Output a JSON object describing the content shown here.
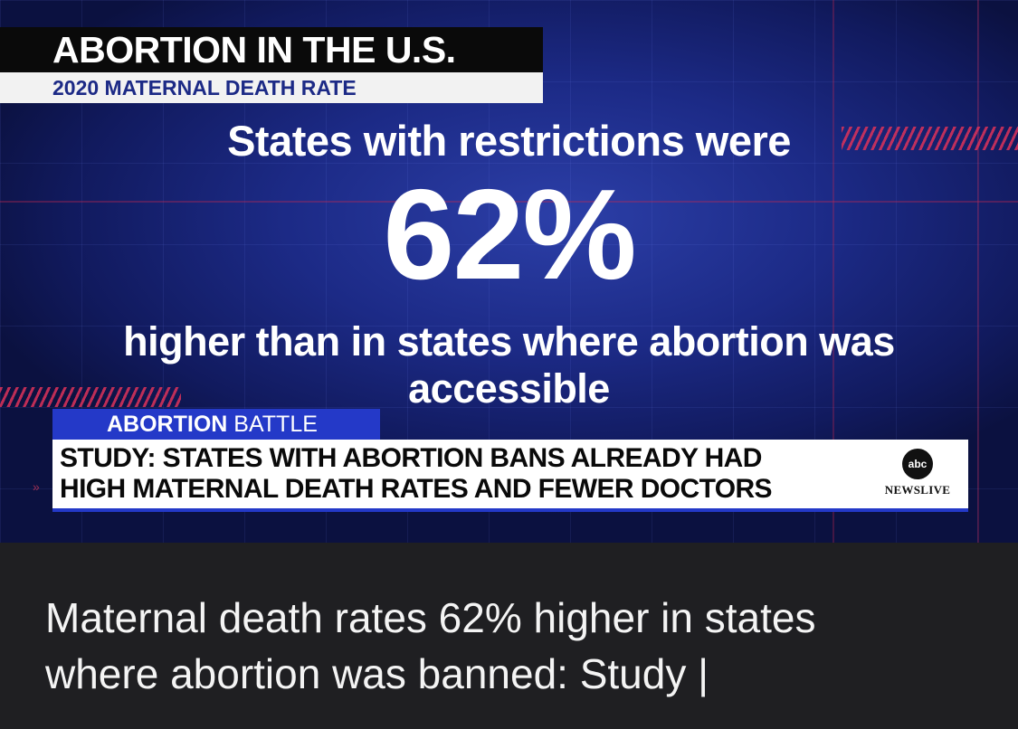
{
  "video": {
    "graphic": {
      "title": "ABORTION IN THE U.S.",
      "subtitle": "2020 MATERNAL DEATH RATE",
      "headline_top": "States with restrictions were",
      "big_stat": "62%",
      "headline_bottom_1": "higher than in states where abortion was",
      "headline_bottom_2": "accessible"
    },
    "lower_third": {
      "tag_bold": "ABORTION",
      "tag_rest": "BATTLE",
      "line1": "STUDY: STATES WITH ABORTION BANS ALREADY HAD",
      "line2": "HIGH MATERNAL DEATH RATES AND FEWER DOCTORS",
      "brand_logo_text": "abc",
      "brand_name": "NEWSLIVE"
    },
    "colors": {
      "accent_blue": "#2439c8",
      "accent_red": "#dc325a"
    }
  },
  "caption": {
    "line1": "Maternal death rates 62% higher in states",
    "line2": "where abortion was banned: Study |"
  }
}
